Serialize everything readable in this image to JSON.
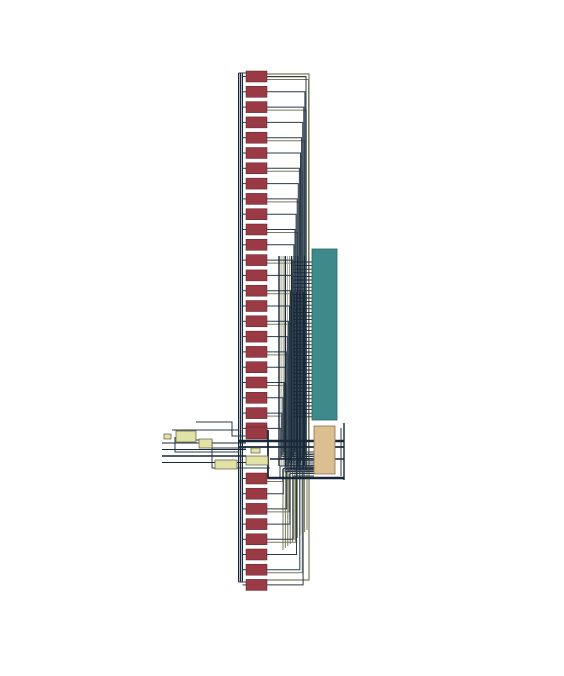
{
  "diagram": {
    "kind": "netlist-schematic",
    "colors": {
      "background": "#ffffff",
      "port_cell": "#9a3a44",
      "port_cell_border": "#5a1a22",
      "wire_bus": "#17283a",
      "wire_thin": "#2a3a4a",
      "wire_olive": "#7a7a5a",
      "wire_olive_light": "#a8a888",
      "memory_block": "#3e8a8a",
      "memory_block_border": "#2a6464",
      "logic_block": "#dcbf90",
      "logic_block_border": "#8a7050",
      "small_cell": "#e2e2a6",
      "small_cell_border": "#5a5a3a"
    },
    "upper_port_count": 24,
    "lower_port_count": 8,
    "small_cell_count": 6,
    "memory_block_count": 1,
    "logic_block_count": 1,
    "input_line_count": 4
  }
}
